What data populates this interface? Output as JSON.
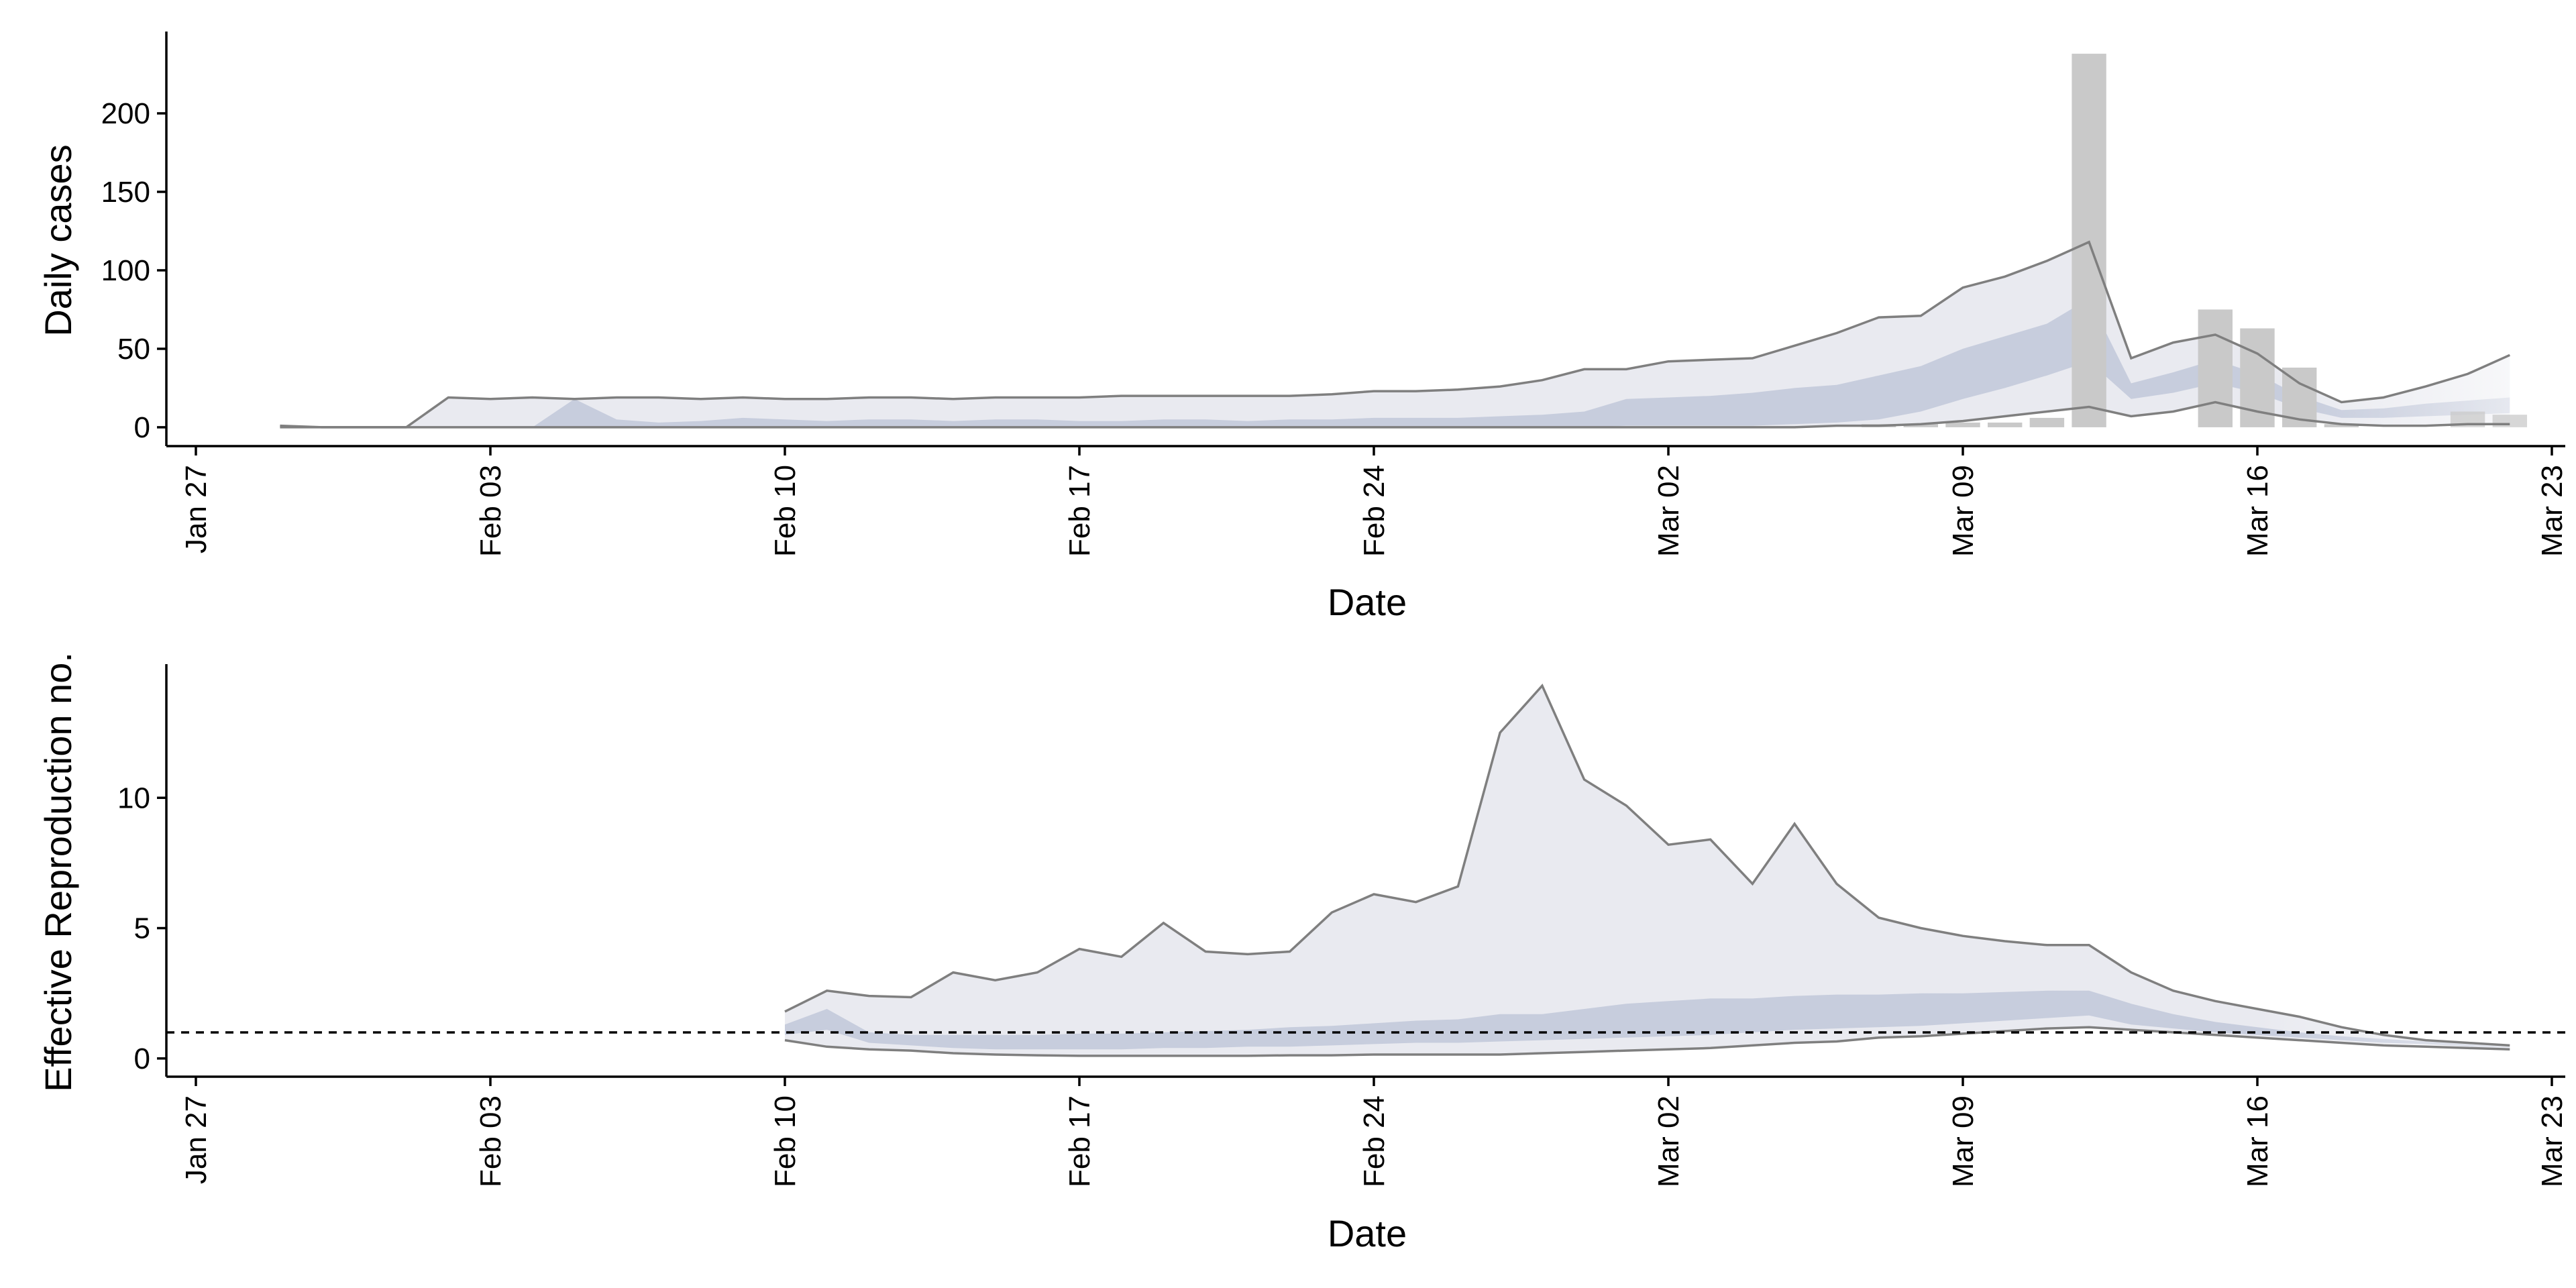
{
  "colors": {
    "outer_band": "#e9eaf0",
    "inner_band": "#c7cddd",
    "bound_line": "#7f7f7f",
    "bar": "#c9c9c9",
    "axis": "#000000",
    "reference_line": "#000000"
  },
  "x_axis": {
    "label": "Date",
    "ticks": [
      "Jan 27",
      "Feb 03",
      "Feb 10",
      "Feb 17",
      "Feb 24",
      "Mar 02",
      "Mar 09",
      "Mar 16",
      "Mar 23"
    ],
    "range": [
      "2020-01-27",
      "2020-03-23"
    ]
  },
  "chart_data": [
    {
      "type": "area",
      "panel": "top",
      "xlabel": "Date",
      "ylabel": "Daily cases",
      "ylim": [
        -12,
        250
      ],
      "yticks": [
        0,
        50,
        100,
        150,
        200
      ],
      "legend": "none",
      "grid": false,
      "bars": {
        "dates": [
          "2020-03-07",
          "2020-03-08",
          "2020-03-09",
          "2020-03-10",
          "2020-03-11",
          "2020-03-12",
          "2020-03-15",
          "2020-03-16",
          "2020-03-17",
          "2020-03-18",
          "2020-03-21",
          "2020-03-22"
        ],
        "values": [
          2,
          2,
          3,
          3,
          6,
          238,
          75,
          63,
          38,
          2,
          10,
          8
        ]
      },
      "series": [
        {
          "role": "upper_90",
          "dates": [
            "2020-01-29",
            "2020-01-30",
            "2020-01-31",
            "2020-02-01",
            "2020-02-02",
            "2020-02-03",
            "2020-02-04",
            "2020-02-05",
            "2020-02-06",
            "2020-02-07",
            "2020-02-08",
            "2020-02-09",
            "2020-02-10",
            "2020-02-11",
            "2020-02-12",
            "2020-02-13",
            "2020-02-14",
            "2020-02-15",
            "2020-02-16",
            "2020-02-17",
            "2020-02-18",
            "2020-02-19",
            "2020-02-20",
            "2020-02-21",
            "2020-02-22",
            "2020-02-23",
            "2020-02-24",
            "2020-02-25",
            "2020-02-26",
            "2020-02-27",
            "2020-02-28",
            "2020-02-29",
            "2020-03-01",
            "2020-03-02",
            "2020-03-03",
            "2020-03-04",
            "2020-03-05",
            "2020-03-06",
            "2020-03-07",
            "2020-03-08",
            "2020-03-09",
            "2020-03-10",
            "2020-03-11",
            "2020-03-12",
            "2020-03-13",
            "2020-03-14",
            "2020-03-15",
            "2020-03-16",
            "2020-03-17",
            "2020-03-18",
            "2020-03-19",
            "2020-03-20",
            "2020-03-21",
            "2020-03-22"
          ],
          "values": [
            1,
            0,
            0,
            0,
            19,
            18,
            19,
            18,
            19,
            19,
            18,
            19,
            18,
            18,
            19,
            19,
            18,
            19,
            19,
            19,
            20,
            20,
            20,
            20,
            20,
            21,
            23,
            23,
            24,
            26,
            30,
            37,
            37,
            42,
            43,
            44,
            52,
            60,
            70,
            71,
            89,
            96,
            106,
            118,
            44,
            54,
            59,
            47,
            28,
            16,
            19,
            26,
            34,
            46
          ]
        },
        {
          "role": "upper_50",
          "dates": [
            "2020-01-29",
            "2020-01-30",
            "2020-01-31",
            "2020-02-01",
            "2020-02-02",
            "2020-02-03",
            "2020-02-04",
            "2020-02-05",
            "2020-02-06",
            "2020-02-07",
            "2020-02-08",
            "2020-02-09",
            "2020-02-10",
            "2020-02-11",
            "2020-02-12",
            "2020-02-13",
            "2020-02-14",
            "2020-02-15",
            "2020-02-16",
            "2020-02-17",
            "2020-02-18",
            "2020-02-19",
            "2020-02-20",
            "2020-02-21",
            "2020-02-22",
            "2020-02-23",
            "2020-02-24",
            "2020-02-25",
            "2020-02-26",
            "2020-02-27",
            "2020-02-28",
            "2020-02-29",
            "2020-03-01",
            "2020-03-02",
            "2020-03-03",
            "2020-03-04",
            "2020-03-05",
            "2020-03-06",
            "2020-03-07",
            "2020-03-08",
            "2020-03-09",
            "2020-03-10",
            "2020-03-11",
            "2020-03-12",
            "2020-03-13",
            "2020-03-14",
            "2020-03-15",
            "2020-03-16",
            "2020-03-17",
            "2020-03-18",
            "2020-03-19",
            "2020-03-20",
            "2020-03-21",
            "2020-03-22"
          ],
          "values": [
            0,
            0,
            0,
            0,
            0,
            0,
            0,
            18,
            5,
            3,
            4,
            6,
            5,
            4,
            5,
            5,
            4,
            5,
            5,
            4,
            4,
            5,
            5,
            4,
            5,
            5,
            6,
            6,
            6,
            7,
            8,
            10,
            18,
            19,
            20,
            22,
            25,
            27,
            33,
            39,
            50,
            58,
            66,
            82,
            28,
            35,
            43,
            34,
            20,
            11,
            12,
            15,
            17,
            19
          ]
        },
        {
          "role": "lower_50",
          "dates": [
            "2020-01-29",
            "2020-01-30",
            "2020-01-31",
            "2020-02-01",
            "2020-02-02",
            "2020-02-03",
            "2020-02-04",
            "2020-02-05",
            "2020-02-06",
            "2020-02-07",
            "2020-02-08",
            "2020-02-09",
            "2020-02-10",
            "2020-02-11",
            "2020-02-12",
            "2020-02-13",
            "2020-02-14",
            "2020-02-15",
            "2020-02-16",
            "2020-02-17",
            "2020-02-18",
            "2020-02-19",
            "2020-02-20",
            "2020-02-21",
            "2020-02-22",
            "2020-02-23",
            "2020-02-24",
            "2020-02-25",
            "2020-02-26",
            "2020-02-27",
            "2020-02-28",
            "2020-02-29",
            "2020-03-01",
            "2020-03-02",
            "2020-03-03",
            "2020-03-04",
            "2020-03-05",
            "2020-03-06",
            "2020-03-07",
            "2020-03-08",
            "2020-03-09",
            "2020-03-10",
            "2020-03-11",
            "2020-03-12",
            "2020-03-13",
            "2020-03-14",
            "2020-03-15",
            "2020-03-16",
            "2020-03-17",
            "2020-03-18",
            "2020-03-19",
            "2020-03-20",
            "2020-03-21",
            "2020-03-22"
          ],
          "values": [
            0,
            0,
            0,
            0,
            0,
            0,
            0,
            0,
            0,
            0,
            0,
            0,
            0,
            0,
            0,
            0,
            0,
            0,
            0,
            0,
            0,
            0,
            0,
            0,
            0,
            0,
            0,
            0,
            0,
            0,
            0,
            0,
            1,
            1,
            1,
            1,
            2,
            3,
            5,
            10,
            18,
            25,
            33,
            42,
            18,
            22,
            28,
            22,
            12,
            6,
            6,
            7,
            8,
            9
          ]
        },
        {
          "role": "lower_90",
          "dates": [
            "2020-01-29",
            "2020-01-30",
            "2020-01-31",
            "2020-02-01",
            "2020-02-02",
            "2020-02-03",
            "2020-02-04",
            "2020-02-05",
            "2020-02-06",
            "2020-02-07",
            "2020-02-08",
            "2020-02-09",
            "2020-02-10",
            "2020-02-11",
            "2020-02-12",
            "2020-02-13",
            "2020-02-14",
            "2020-02-15",
            "2020-02-16",
            "2020-02-17",
            "2020-02-18",
            "2020-02-19",
            "2020-02-20",
            "2020-02-21",
            "2020-02-22",
            "2020-02-23",
            "2020-02-24",
            "2020-02-25",
            "2020-02-26",
            "2020-02-27",
            "2020-02-28",
            "2020-02-29",
            "2020-03-01",
            "2020-03-02",
            "2020-03-03",
            "2020-03-04",
            "2020-03-05",
            "2020-03-06",
            "2020-03-07",
            "2020-03-08",
            "2020-03-09",
            "2020-03-10",
            "2020-03-11",
            "2020-03-12",
            "2020-03-13",
            "2020-03-14",
            "2020-03-15",
            "2020-03-16",
            "2020-03-17",
            "2020-03-18",
            "2020-03-19",
            "2020-03-20",
            "2020-03-21",
            "2020-03-22"
          ],
          "values": [
            0,
            0,
            0,
            0,
            0,
            0,
            0,
            0,
            0,
            0,
            0,
            0,
            0,
            0,
            0,
            0,
            0,
            0,
            0,
            0,
            0,
            0,
            0,
            0,
            0,
            0,
            0,
            0,
            0,
            0,
            0,
            0,
            0,
            0,
            0,
            0,
            0,
            1,
            1,
            2,
            4,
            7,
            10,
            13,
            7,
            10,
            16,
            10,
            5,
            2,
            1,
            1,
            2,
            2
          ]
        }
      ]
    },
    {
      "type": "area",
      "panel": "bottom",
      "xlabel": "Date",
      "ylabel": "Effective Reproduction no.",
      "ylim": [
        -0.7,
        15
      ],
      "yticks": [
        0,
        5,
        10
      ],
      "reference_line": 1,
      "legend": "none",
      "grid": false,
      "series": [
        {
          "role": "upper_90",
          "dates": [
            "2020-02-10",
            "2020-02-11",
            "2020-02-12",
            "2020-02-13",
            "2020-02-14",
            "2020-02-15",
            "2020-02-16",
            "2020-02-17",
            "2020-02-18",
            "2020-02-19",
            "2020-02-20",
            "2020-02-21",
            "2020-02-22",
            "2020-02-23",
            "2020-02-24",
            "2020-02-25",
            "2020-02-26",
            "2020-02-27",
            "2020-02-28",
            "2020-02-29",
            "2020-03-01",
            "2020-03-02",
            "2020-03-03",
            "2020-03-04",
            "2020-03-05",
            "2020-03-06",
            "2020-03-07",
            "2020-03-08",
            "2020-03-09",
            "2020-03-10",
            "2020-03-11",
            "2020-03-12",
            "2020-03-13",
            "2020-03-14",
            "2020-03-15",
            "2020-03-16",
            "2020-03-17",
            "2020-03-18",
            "2020-03-19",
            "2020-03-20",
            "2020-03-21",
            "2020-03-22"
          ],
          "values": [
            1.8,
            2.6,
            2.4,
            2.35,
            3.3,
            3.0,
            3.3,
            4.2,
            3.9,
            5.2,
            4.1,
            4.0,
            4.1,
            5.6,
            6.3,
            6.0,
            6.6,
            12.5,
            14.3,
            10.7,
            9.7,
            8.2,
            8.4,
            6.7,
            9.0,
            6.7,
            5.4,
            5.0,
            4.7,
            4.5,
            4.35,
            4.35,
            3.3,
            2.6,
            2.2,
            1.9,
            1.6,
            1.2,
            0.9,
            0.7,
            0.6,
            0.5
          ]
        },
        {
          "role": "upper_50",
          "dates": [
            "2020-02-10",
            "2020-02-11",
            "2020-02-12",
            "2020-02-13",
            "2020-02-14",
            "2020-02-15",
            "2020-02-16",
            "2020-02-17",
            "2020-02-18",
            "2020-02-19",
            "2020-02-20",
            "2020-02-21",
            "2020-02-22",
            "2020-02-23",
            "2020-02-24",
            "2020-02-25",
            "2020-02-26",
            "2020-02-27",
            "2020-02-28",
            "2020-02-29",
            "2020-03-01",
            "2020-03-02",
            "2020-03-03",
            "2020-03-04",
            "2020-03-05",
            "2020-03-06",
            "2020-03-07",
            "2020-03-08",
            "2020-03-09",
            "2020-03-10",
            "2020-03-11",
            "2020-03-12",
            "2020-03-13",
            "2020-03-14",
            "2020-03-15",
            "2020-03-16",
            "2020-03-17",
            "2020-03-18",
            "2020-03-19",
            "2020-03-20",
            "2020-03-21",
            "2020-03-22"
          ],
          "values": [
            1.3,
            1.9,
            1.0,
            0.9,
            0.9,
            0.9,
            0.9,
            0.95,
            0.95,
            1.0,
            1.05,
            1.1,
            1.2,
            1.25,
            1.35,
            1.45,
            1.5,
            1.7,
            1.7,
            1.9,
            2.1,
            2.2,
            2.3,
            2.3,
            2.4,
            2.45,
            2.45,
            2.5,
            2.5,
            2.55,
            2.6,
            2.6,
            2.1,
            1.7,
            1.4,
            1.2,
            1.0,
            0.85,
            0.75,
            0.65,
            0.55,
            0.45
          ]
        },
        {
          "role": "lower_50",
          "dates": [
            "2020-02-10",
            "2020-02-11",
            "2020-02-12",
            "2020-02-13",
            "2020-02-14",
            "2020-02-15",
            "2020-02-16",
            "2020-02-17",
            "2020-02-18",
            "2020-02-19",
            "2020-02-20",
            "2020-02-21",
            "2020-02-22",
            "2020-02-23",
            "2020-02-24",
            "2020-02-25",
            "2020-02-26",
            "2020-02-27",
            "2020-02-28",
            "2020-02-29",
            "2020-03-01",
            "2020-03-02",
            "2020-03-03",
            "2020-03-04",
            "2020-03-05",
            "2020-03-06",
            "2020-03-07",
            "2020-03-08",
            "2020-03-09",
            "2020-03-10",
            "2020-03-11",
            "2020-03-12",
            "2020-03-13",
            "2020-03-14",
            "2020-03-15",
            "2020-03-16",
            "2020-03-17",
            "2020-03-18",
            "2020-03-19",
            "2020-03-20",
            "2020-03-21",
            "2020-03-22"
          ],
          "values": [
            0.9,
            1.1,
            0.6,
            0.5,
            0.4,
            0.35,
            0.35,
            0.35,
            0.35,
            0.4,
            0.4,
            0.45,
            0.45,
            0.5,
            0.55,
            0.6,
            0.6,
            0.65,
            0.7,
            0.75,
            0.8,
            0.85,
            0.9,
            1.0,
            1.1,
            1.15,
            1.2,
            1.25,
            1.35,
            1.45,
            1.55,
            1.65,
            1.3,
            1.15,
            1.0,
            0.9,
            0.8,
            0.7,
            0.6,
            0.55,
            0.45,
            0.4
          ]
        },
        {
          "role": "lower_90",
          "dates": [
            "2020-02-10",
            "2020-02-11",
            "2020-02-12",
            "2020-02-13",
            "2020-02-14",
            "2020-02-15",
            "2020-02-16",
            "2020-02-17",
            "2020-02-18",
            "2020-02-19",
            "2020-02-20",
            "2020-02-21",
            "2020-02-22",
            "2020-02-23",
            "2020-02-24",
            "2020-02-25",
            "2020-02-26",
            "2020-02-27",
            "2020-02-28",
            "2020-02-29",
            "2020-03-01",
            "2020-03-02",
            "2020-03-03",
            "2020-03-04",
            "2020-03-05",
            "2020-03-06",
            "2020-03-07",
            "2020-03-08",
            "2020-03-09",
            "2020-03-10",
            "2020-03-11",
            "2020-03-12",
            "2020-03-13",
            "2020-03-14",
            "2020-03-15",
            "2020-03-16",
            "2020-03-17",
            "2020-03-18",
            "2020-03-19",
            "2020-03-20",
            "2020-03-21",
            "2020-03-22"
          ],
          "values": [
            0.7,
            0.45,
            0.35,
            0.3,
            0.2,
            0.15,
            0.12,
            0.1,
            0.1,
            0.1,
            0.1,
            0.1,
            0.12,
            0.12,
            0.15,
            0.15,
            0.15,
            0.15,
            0.2,
            0.25,
            0.3,
            0.35,
            0.4,
            0.5,
            0.6,
            0.65,
            0.8,
            0.85,
            0.95,
            1.05,
            1.15,
            1.2,
            1.1,
            1.0,
            0.9,
            0.8,
            0.7,
            0.6,
            0.5,
            0.45,
            0.4,
            0.35
          ]
        }
      ]
    }
  ]
}
